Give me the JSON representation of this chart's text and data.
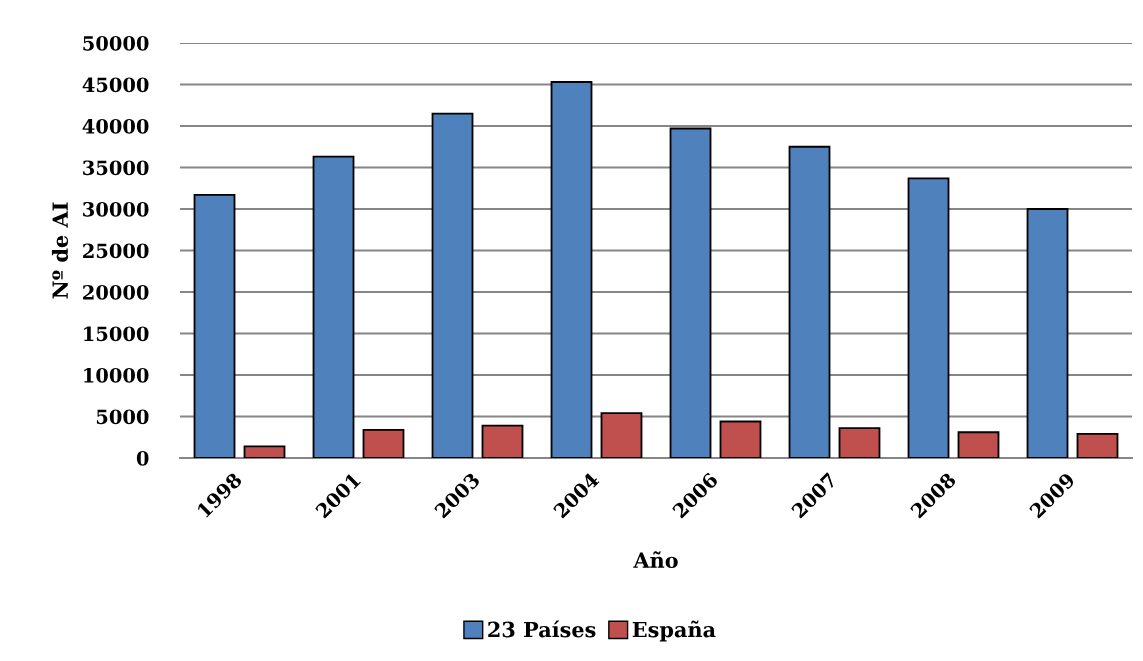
{
  "chart_data": {
    "type": "bar",
    "xlabel": "Año",
    "ylabel": "Nº de AI",
    "categories": [
      "1998",
      "2001",
      "2003",
      "2004",
      "2006",
      "2007",
      "2008",
      "2009"
    ],
    "series": [
      {
        "name": "23 Países",
        "color": "#4f81bd",
        "values": [
          31700,
          36300,
          41500,
          45300,
          39700,
          37500,
          33700,
          30000
        ]
      },
      {
        "name": "España",
        "color": "#c0504d",
        "values": [
          1400,
          3400,
          3900,
          5400,
          4400,
          3600,
          3100,
          2900
        ]
      }
    ],
    "ylim": [
      0,
      50000
    ],
    "yticks": [
      0,
      5000,
      10000,
      15000,
      20000,
      25000,
      30000,
      35000,
      40000,
      45000,
      50000
    ],
    "grid": "y",
    "legend": "bottom"
  }
}
